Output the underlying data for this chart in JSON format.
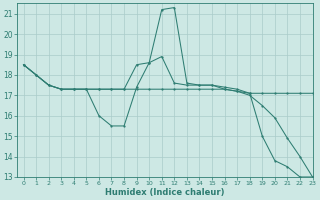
{
  "xlabel": "Humidex (Indice chaleur)",
  "bg_color": "#cde8e4",
  "grid_color": "#aaccca",
  "line_color": "#2e7d72",
  "xlim": [
    -0.5,
    23
  ],
  "ylim": [
    13,
    21.5
  ],
  "yticks": [
    13,
    14,
    15,
    16,
    17,
    18,
    19,
    20,
    21
  ],
  "xticks": [
    0,
    1,
    2,
    3,
    4,
    5,
    6,
    7,
    8,
    9,
    10,
    11,
    12,
    13,
    14,
    15,
    16,
    17,
    18,
    19,
    20,
    21,
    22,
    23
  ],
  "line1": {
    "x": [
      0,
      1,
      2,
      3,
      4,
      5,
      6,
      7,
      8,
      9,
      10,
      11,
      12,
      13,
      14,
      15,
      16,
      17,
      18,
      19,
      20,
      21,
      22,
      23
    ],
    "y": [
      18.5,
      18.0,
      17.5,
      17.3,
      17.3,
      17.3,
      16.0,
      15.5,
      15.5,
      17.4,
      18.6,
      21.2,
      21.3,
      17.6,
      17.5,
      17.5,
      17.3,
      17.2,
      17.1,
      15.0,
      13.8,
      13.5,
      13.0,
      13.0
    ]
  },
  "line2": {
    "x": [
      0,
      1,
      2,
      3,
      4,
      5,
      6,
      7,
      8,
      9,
      10,
      11,
      12,
      13,
      14,
      15,
      16,
      17,
      18,
      19,
      20,
      21,
      22,
      23
    ],
    "y": [
      18.5,
      18.0,
      17.5,
      17.3,
      17.3,
      17.3,
      17.3,
      17.3,
      17.3,
      18.5,
      18.6,
      18.9,
      17.6,
      17.5,
      17.5,
      17.5,
      17.4,
      17.3,
      17.1,
      17.1,
      17.1,
      17.1,
      17.1,
      17.1
    ]
  },
  "line3": {
    "x": [
      0,
      1,
      2,
      3,
      4,
      5,
      6,
      7,
      8,
      9,
      10,
      11,
      12,
      13,
      14,
      15,
      16,
      17,
      18,
      19,
      20,
      21,
      22,
      23
    ],
    "y": [
      18.5,
      18.0,
      17.5,
      17.3,
      17.3,
      17.3,
      17.3,
      17.3,
      17.3,
      17.3,
      17.3,
      17.3,
      17.3,
      17.3,
      17.3,
      17.3,
      17.3,
      17.2,
      17.0,
      16.5,
      15.9,
      14.9,
      14.0,
      13.0
    ]
  }
}
